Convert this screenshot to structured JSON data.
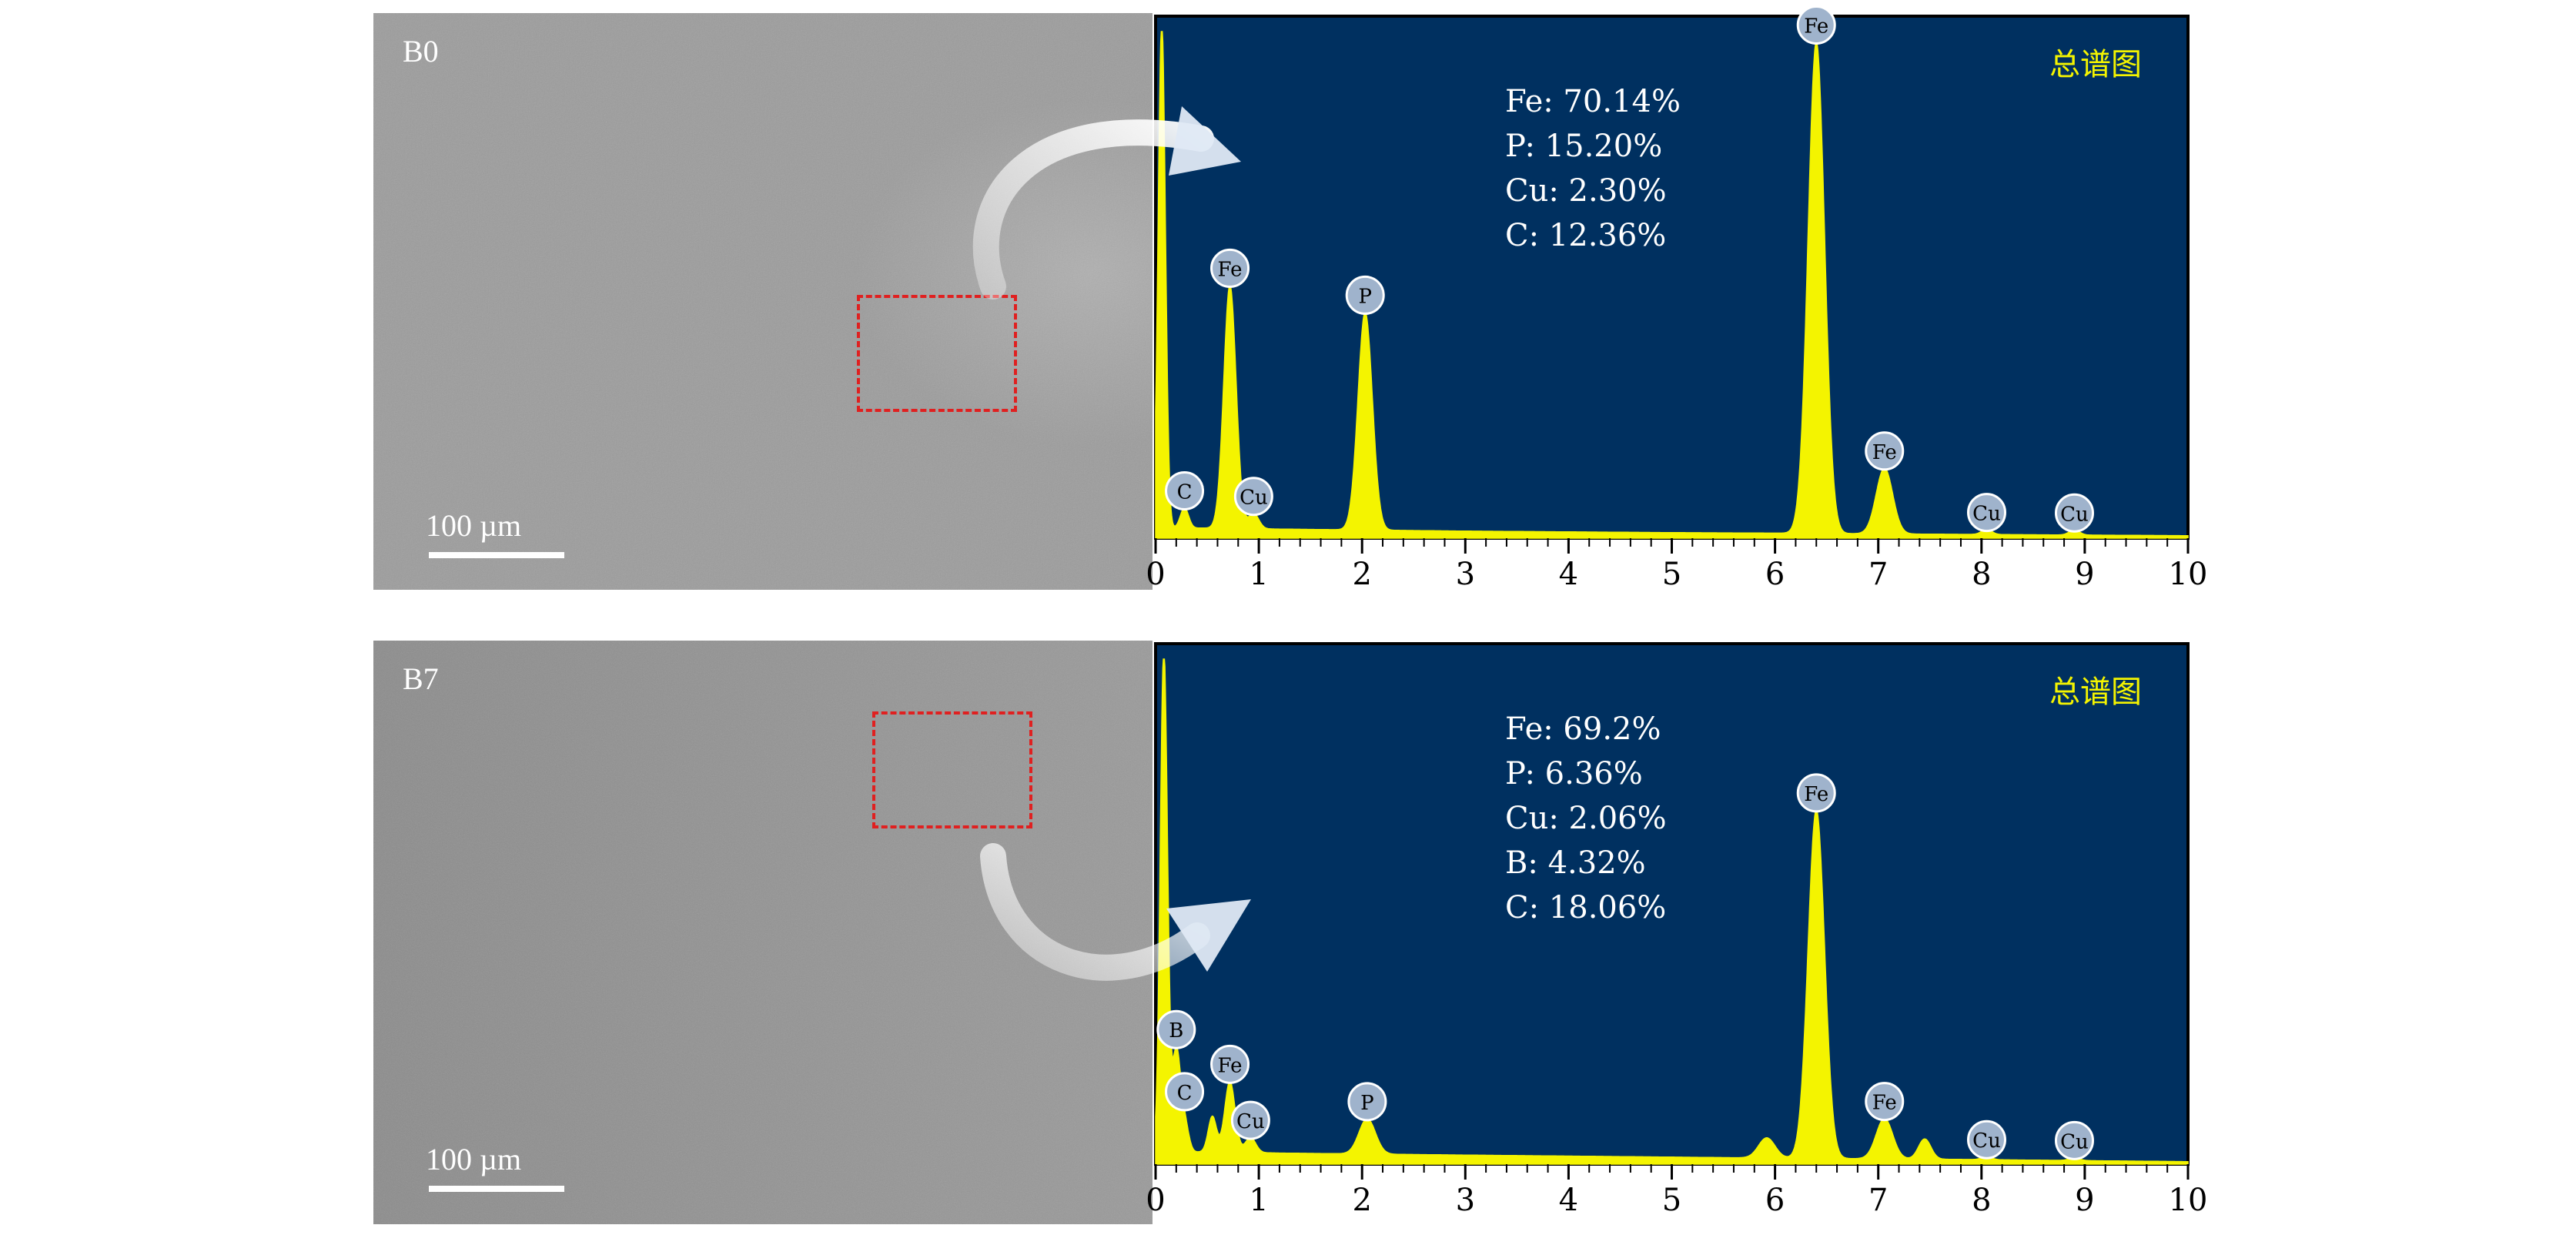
{
  "chart_data": [
    {
      "type": "area",
      "sample_label": "B0",
      "scale_bar_label": "100 µm",
      "chart_title": "总谱图",
      "composition": [
        "Fe: 70.14%",
        "P: 15.20%",
        "Cu: 2.30%",
        "C: 12.36%"
      ],
      "xlim": [
        0,
        10
      ],
      "ylim": [
        0,
        100
      ],
      "x_ticks": [
        "0",
        "1",
        "2",
        "3",
        "4",
        "5",
        "6",
        "7",
        "8",
        "9",
        "10"
      ],
      "peaks": [
        {
          "x": 0.06,
          "y": 100,
          "w": 0.035,
          "label": ""
        },
        {
          "x": 0.28,
          "y": 4,
          "w": 0.04,
          "label": "C"
        },
        {
          "x": 0.72,
          "y": 48,
          "w": 0.06,
          "label": "Fe"
        },
        {
          "x": 0.95,
          "y": 3,
          "w": 0.05,
          "label": "Cu"
        },
        {
          "x": 2.03,
          "y": 43,
          "w": 0.07,
          "label": "P"
        },
        {
          "x": 6.4,
          "y": 97,
          "w": 0.08,
          "label": "Fe"
        },
        {
          "x": 7.06,
          "y": 13,
          "w": 0.08,
          "label": "Fe"
        },
        {
          "x": 8.05,
          "y": 1,
          "w": 0.05,
          "label": "Cu"
        },
        {
          "x": 8.9,
          "y": 1,
          "w": 0.05,
          "label": "Cu"
        }
      ],
      "background": [
        [
          0,
          2
        ],
        [
          0.5,
          2
        ],
        [
          1.2,
          1.8
        ],
        [
          3,
          1.4
        ],
        [
          5,
          1.1
        ],
        [
          6,
          1.0
        ],
        [
          7.5,
          0.8
        ],
        [
          10,
          0.5
        ]
      ]
    },
    {
      "type": "area",
      "sample_label": "B7",
      "scale_bar_label": "100 µm",
      "chart_title": "总谱图",
      "composition": [
        "Fe: 69.2%",
        "P: 6.36%",
        "Cu: 2.06%",
        "B: 4.32%",
        "C: 18.06%"
      ],
      "xlim": [
        0,
        10
      ],
      "ylim": [
        0,
        100
      ],
      "x_ticks": [
        "0",
        "1",
        "2",
        "3",
        "4",
        "5",
        "6",
        "7",
        "8",
        "9",
        "10"
      ],
      "peaks": [
        {
          "x": 0.08,
          "y": 100,
          "w": 0.035,
          "label": ""
        },
        {
          "x": 0.2,
          "y": 20,
          "w": 0.04,
          "label": "B"
        },
        {
          "x": 0.28,
          "y": 6,
          "w": 0.04,
          "label": "C"
        },
        {
          "x": 0.55,
          "y": 7,
          "w": 0.04,
          "label": ""
        },
        {
          "x": 0.72,
          "y": 14,
          "w": 0.05,
          "label": "Fe"
        },
        {
          "x": 0.92,
          "y": 3,
          "w": 0.05,
          "label": "Cu"
        },
        {
          "x": 2.05,
          "y": 7,
          "w": 0.08,
          "label": "P"
        },
        {
          "x": 5.92,
          "y": 4,
          "w": 0.08,
          "label": ""
        },
        {
          "x": 6.4,
          "y": 69,
          "w": 0.08,
          "label": "Fe"
        },
        {
          "x": 7.06,
          "y": 8,
          "w": 0.08,
          "label": "Fe"
        },
        {
          "x": 7.45,
          "y": 4,
          "w": 0.06,
          "label": ""
        },
        {
          "x": 8.05,
          "y": 0.6,
          "w": 0.05,
          "label": "Cu"
        },
        {
          "x": 8.9,
          "y": 0.6,
          "w": 0.05,
          "label": "Cu"
        }
      ],
      "background": [
        [
          0,
          2
        ],
        [
          0.5,
          2.5
        ],
        [
          1.2,
          2.2
        ],
        [
          3,
          1.8
        ],
        [
          5,
          1.4
        ],
        [
          6,
          1.2
        ],
        [
          7.5,
          1.0
        ],
        [
          10,
          0.5
        ]
      ]
    }
  ],
  "colors": {
    "spectrum_fill": "#f4f400",
    "plot_background": "#003060",
    "title_text": "#f4f400",
    "annotation_text": "#ffffff",
    "selection_box": "#e02020"
  }
}
